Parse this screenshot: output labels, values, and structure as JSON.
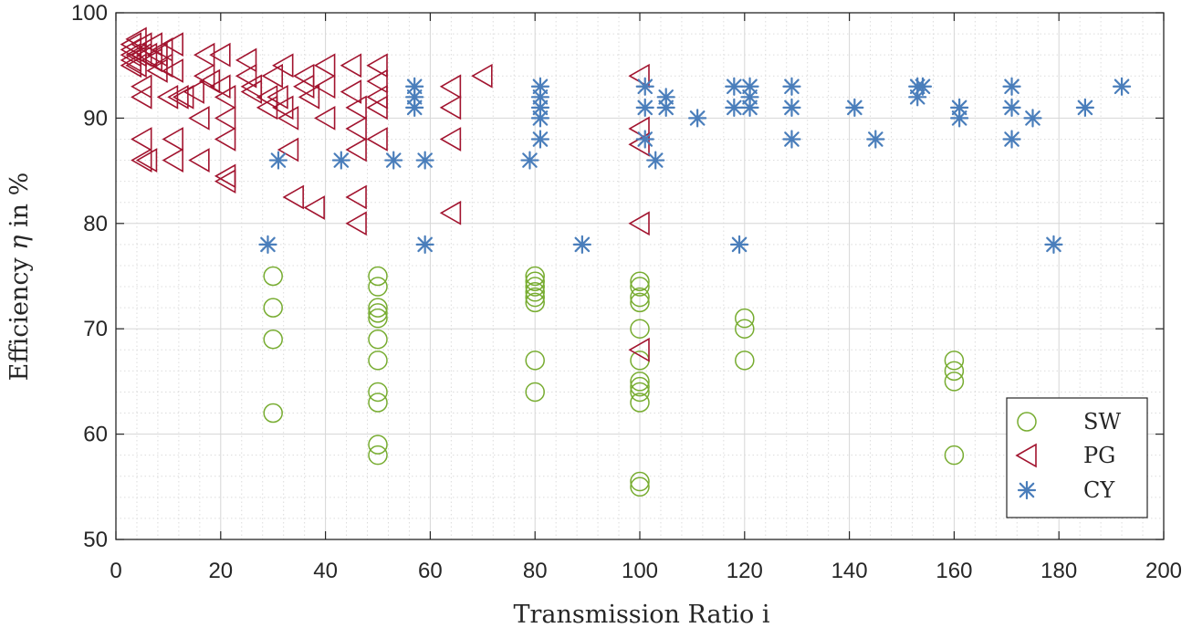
{
  "chart_data": {
    "type": "scatter",
    "title": "",
    "xlabel": "Transmission Ratio i",
    "ylabel_prefix": "Efficiency ",
    "ylabel_symbol": "η",
    "ylabel_suffix": " in %",
    "xlim": [
      0,
      200
    ],
    "ylim": [
      50,
      100
    ],
    "x_ticks": [
      0,
      20,
      40,
      60,
      80,
      100,
      120,
      140,
      160,
      180,
      200
    ],
    "y_ticks": [
      50,
      60,
      70,
      80,
      90,
      100
    ],
    "x_minor_step": 4,
    "y_minor_step": 2,
    "grid": true,
    "legend_position": "bottom-right",
    "series": [
      {
        "name": "SW",
        "marker": "circle",
        "color": "#77AC30",
        "points": [
          [
            30,
            75
          ],
          [
            30,
            72
          ],
          [
            30,
            69
          ],
          [
            30,
            62
          ],
          [
            50,
            75
          ],
          [
            50,
            74
          ],
          [
            50,
            72
          ],
          [
            50,
            71.5
          ],
          [
            50,
            71
          ],
          [
            50,
            69
          ],
          [
            50,
            67
          ],
          [
            50,
            64
          ],
          [
            50,
            63
          ],
          [
            50,
            59
          ],
          [
            50,
            58
          ],
          [
            80,
            75
          ],
          [
            80,
            74.5
          ],
          [
            80,
            74
          ],
          [
            80,
            73.5
          ],
          [
            80,
            73
          ],
          [
            80,
            72.5
          ],
          [
            80,
            67
          ],
          [
            80,
            64
          ],
          [
            100,
            74.5
          ],
          [
            100,
            74
          ],
          [
            100,
            73
          ],
          [
            100,
            72.5
          ],
          [
            100,
            70
          ],
          [
            100,
            67
          ],
          [
            100,
            65
          ],
          [
            100,
            64.5
          ],
          [
            100,
            64
          ],
          [
            100,
            63
          ],
          [
            100,
            55.5
          ],
          [
            100,
            55
          ],
          [
            120,
            71
          ],
          [
            120,
            70
          ],
          [
            120,
            67
          ],
          [
            160,
            67
          ],
          [
            160,
            66
          ],
          [
            160,
            65
          ],
          [
            160,
            58
          ]
        ]
      },
      {
        "name": "PG",
        "marker": "triangle-left",
        "color": "#A2142F",
        "points": [
          [
            3,
            97
          ],
          [
            3,
            96.5
          ],
          [
            3,
            96
          ],
          [
            3,
            95.5
          ],
          [
            3,
            95
          ],
          [
            4,
            97.5
          ],
          [
            4,
            96
          ],
          [
            4,
            95
          ],
          [
            5,
            97
          ],
          [
            5,
            96
          ],
          [
            5,
            93
          ],
          [
            5,
            92
          ],
          [
            5,
            88
          ],
          [
            5,
            86
          ],
          [
            6,
            96
          ],
          [
            6,
            86
          ],
          [
            7,
            97
          ],
          [
            7,
            95.5
          ],
          [
            8,
            96
          ],
          [
            8,
            94.5
          ],
          [
            9,
            96.5
          ],
          [
            9,
            95
          ],
          [
            10,
            92
          ],
          [
            11,
            97
          ],
          [
            11,
            94.5
          ],
          [
            11,
            88
          ],
          [
            11,
            86
          ],
          [
            12,
            92
          ],
          [
            13,
            92
          ],
          [
            15,
            92.5
          ],
          [
            16,
            90
          ],
          [
            16,
            86
          ],
          [
            17,
            96
          ],
          [
            17,
            94
          ],
          [
            18,
            93.5
          ],
          [
            20,
            96
          ],
          [
            20,
            93
          ],
          [
            21,
            92
          ],
          [
            21,
            90
          ],
          [
            21,
            88
          ],
          [
            21,
            84.5
          ],
          [
            21,
            84
          ],
          [
            25,
            95.5
          ],
          [
            25,
            94
          ],
          [
            26,
            93
          ],
          [
            26,
            92.5
          ],
          [
            29,
            92
          ],
          [
            29,
            91
          ],
          [
            30,
            94
          ],
          [
            31,
            92
          ],
          [
            32,
            95
          ],
          [
            32,
            91
          ],
          [
            33,
            90
          ],
          [
            33,
            87
          ],
          [
            34,
            82.5
          ],
          [
            36,
            93
          ],
          [
            36,
            94
          ],
          [
            37,
            92
          ],
          [
            38,
            81.5
          ],
          [
            40,
            95
          ],
          [
            40,
            93
          ],
          [
            40,
            90
          ],
          [
            45,
            95
          ],
          [
            45,
            92.5
          ],
          [
            46,
            91
          ],
          [
            46,
            89
          ],
          [
            46,
            87
          ],
          [
            46,
            82.5
          ],
          [
            46,
            80
          ],
          [
            50,
            95
          ],
          [
            50,
            93.5
          ],
          [
            50,
            92
          ],
          [
            50,
            91
          ],
          [
            50,
            88
          ],
          [
            64,
            93
          ],
          [
            64,
            91
          ],
          [
            64,
            88
          ],
          [
            64,
            81
          ],
          [
            70,
            94
          ],
          [
            100,
            94
          ],
          [
            100,
            89
          ],
          [
            100,
            87.5
          ],
          [
            100,
            80
          ],
          [
            100,
            68
          ]
        ]
      },
      {
        "name": "CY",
        "marker": "asterisk",
        "color": "#4A7EBB",
        "points": [
          [
            29,
            78
          ],
          [
            31,
            86
          ],
          [
            43,
            86
          ],
          [
            53,
            86
          ],
          [
            57,
            93
          ],
          [
            57,
            92
          ],
          [
            57,
            91
          ],
          [
            59,
            86
          ],
          [
            59,
            78
          ],
          [
            79,
            86
          ],
          [
            81,
            93
          ],
          [
            81,
            92
          ],
          [
            81,
            91
          ],
          [
            81,
            90
          ],
          [
            81,
            88
          ],
          [
            89,
            78
          ],
          [
            101,
            93
          ],
          [
            101,
            91
          ],
          [
            101,
            88
          ],
          [
            103,
            86
          ],
          [
            105,
            92
          ],
          [
            105,
            91
          ],
          [
            111,
            90
          ],
          [
            118,
            93
          ],
          [
            118,
            91
          ],
          [
            119,
            78
          ],
          [
            121,
            93
          ],
          [
            121,
            92
          ],
          [
            121,
            91
          ],
          [
            129,
            93
          ],
          [
            129,
            91
          ],
          [
            129,
            88
          ],
          [
            141,
            91
          ],
          [
            145,
            88
          ],
          [
            153,
            93
          ],
          [
            153,
            92
          ],
          [
            154,
            93
          ],
          [
            161,
            91
          ],
          [
            161,
            90
          ],
          [
            171,
            93
          ],
          [
            171,
            91
          ],
          [
            171,
            88
          ],
          [
            175,
            90
          ],
          [
            179,
            78
          ],
          [
            185,
            91
          ],
          [
            192,
            93
          ]
        ]
      }
    ]
  }
}
